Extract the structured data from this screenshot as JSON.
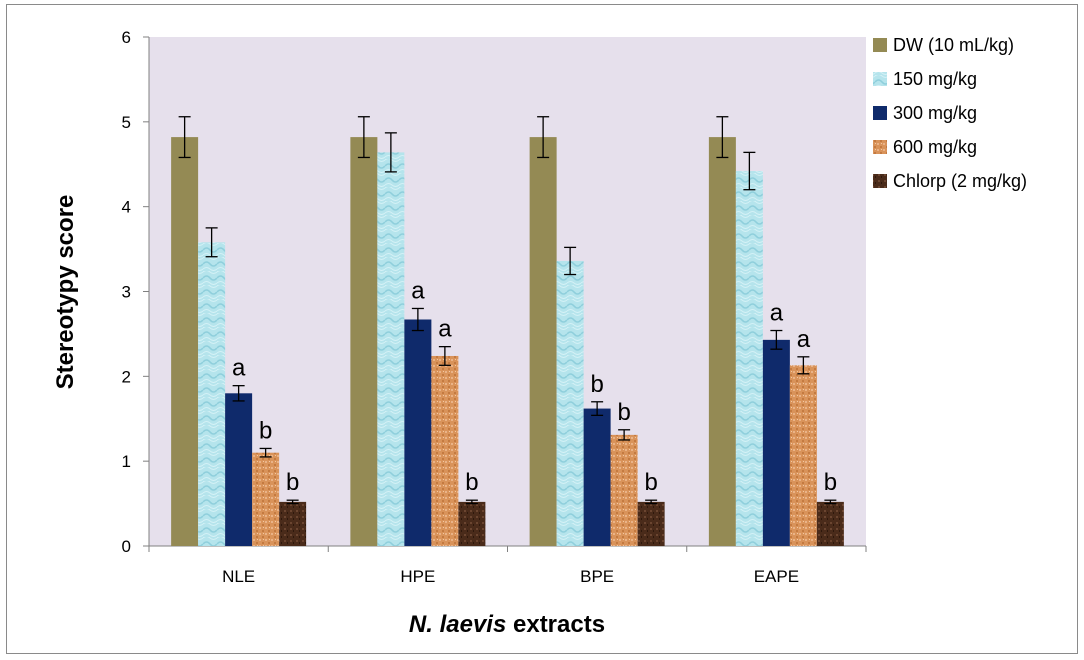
{
  "chart_data": {
    "type": "bar",
    "title": "",
    "xlabel_italic": "N. laevis",
    "xlabel_rest": " extracts",
    "ylabel": "Stereotypy score",
    "ylim": [
      0,
      6
    ],
    "yticks": [
      0,
      1,
      2,
      3,
      4,
      5,
      6
    ],
    "categories": [
      "NLE",
      "HPE",
      "BPE",
      "EAPE"
    ],
    "grid": false,
    "legend_position": "right",
    "series": [
      {
        "name": "DW (10 mL/kg)",
        "color": "#948a54",
        "values": [
          4.82,
          4.82,
          4.82,
          4.82
        ],
        "errors": [
          0.24,
          0.24,
          0.24,
          0.24
        ],
        "labels": [
          "",
          "",
          "",
          ""
        ]
      },
      {
        "name": "150 mg/kg",
        "color": "#a8dde6",
        "values": [
          3.58,
          4.64,
          3.36,
          4.42
        ],
        "errors": [
          0.17,
          0.23,
          0.16,
          0.22
        ],
        "labels": [
          "",
          "",
          "",
          ""
        ]
      },
      {
        "name": "300 mg/kg",
        "color": "#0f2a6b",
        "values": [
          1.8,
          2.67,
          1.62,
          2.43
        ],
        "errors": [
          0.09,
          0.13,
          0.08,
          0.11
        ],
        "labels": [
          "a",
          "a",
          "b",
          "a"
        ]
      },
      {
        "name": "600 mg/kg",
        "color": "#d9935a",
        "values": [
          1.1,
          2.24,
          1.31,
          2.13
        ],
        "errors": [
          0.05,
          0.11,
          0.06,
          0.1
        ],
        "labels": [
          "b",
          "a",
          "b",
          "a"
        ]
      },
      {
        "name": "Chlorp (2 mg/kg)",
        "color": "#4a2b1a",
        "values": [
          0.52,
          0.52,
          0.52,
          0.52
        ],
        "errors": [
          0.02,
          0.02,
          0.02,
          0.02
        ],
        "labels": [
          "b",
          "b",
          "b",
          "b"
        ]
      }
    ]
  }
}
